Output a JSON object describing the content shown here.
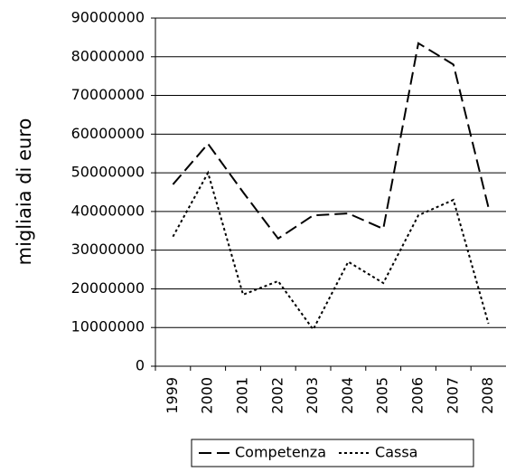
{
  "chart_data": {
    "type": "line",
    "y_label": "migliaia di euro",
    "categories": [
      "1999",
      "2000",
      "2001",
      "2002",
      "2003",
      "2004",
      "2005",
      "2006",
      "2007",
      "2008"
    ],
    "series": [
      {
        "name": "Competenza",
        "color": "#000000",
        "line_style": "dashed",
        "values": [
          47000000,
          57500000,
          45000000,
          33000000,
          39000000,
          39500000,
          35500000,
          83500000,
          78000000,
          41000000
        ]
      },
      {
        "name": "Cassa",
        "color": "#000000",
        "line_style": "dotted",
        "values": [
          33500000,
          50000000,
          18500000,
          22000000,
          9500000,
          27000000,
          21500000,
          39000000,
          43000000,
          11000000
        ]
      }
    ],
    "ylim": [
      0,
      90000000
    ],
    "yticks": [
      0,
      10000000,
      20000000,
      30000000,
      40000000,
      50000000,
      60000000,
      70000000,
      80000000,
      90000000
    ],
    "grid": true,
    "legend": "bottom"
  }
}
